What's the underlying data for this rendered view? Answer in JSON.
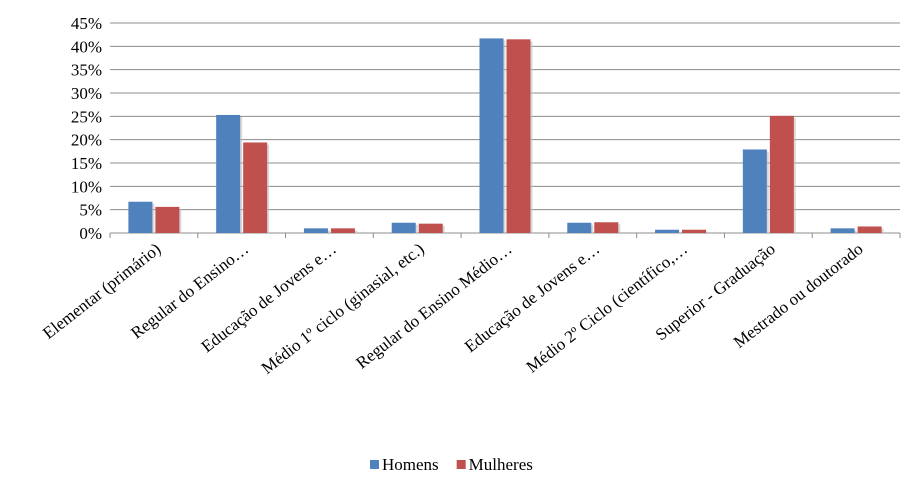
{
  "chart_data": {
    "type": "bar",
    "title": "",
    "xlabel": "",
    "ylabel": "",
    "ylim": [
      0,
      45
    ],
    "ytick_step": 5,
    "ytick_suffix": "%",
    "grid": true,
    "legend_position": "bottom",
    "categories": [
      "Elementar (primário)",
      "Regular do Ensino…",
      "Educação de Jovens e…",
      "Médio 1º ciclo (ginasial, etc.)",
      "Regular do Ensino Médio…",
      "Educação de Jovens e…",
      "Médio 2º Ciclo (científico,…",
      "Superior - Graduação",
      "Mestrado ou doutorado"
    ],
    "series": [
      {
        "name": "Homens",
        "color": "#4f81bd",
        "values": [
          6.7,
          25.3,
          1.0,
          2.2,
          41.7,
          2.2,
          0.7,
          17.9,
          1.0
        ]
      },
      {
        "name": "Mulheres",
        "color": "#c0504d",
        "values": [
          5.6,
          19.4,
          1.0,
          2.0,
          41.5,
          2.3,
          0.7,
          25.1,
          1.4
        ]
      }
    ]
  }
}
